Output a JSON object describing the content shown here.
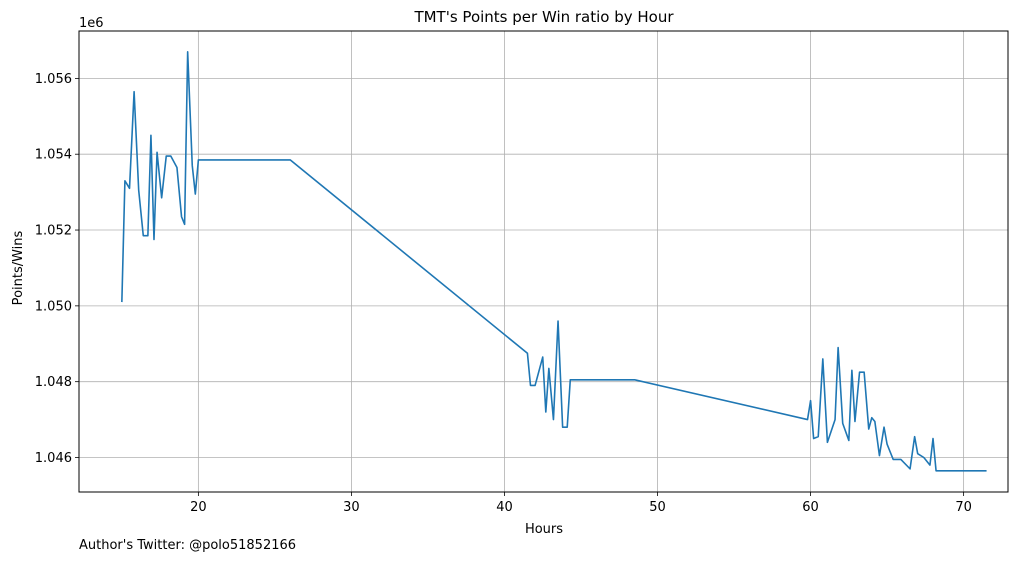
{
  "chart_data": {
    "type": "line",
    "title": "TMT's Points per Win ratio by Hour",
    "xlabel": "Hours",
    "ylabel": "Points/Wins",
    "y_offset_label": "1e6",
    "y_scale": 1000000,
    "xlim": [
      12.2,
      72.9
    ],
    "ylim": [
      1045090,
      1057250
    ],
    "x_ticks": [
      20,
      30,
      40,
      50,
      60,
      70
    ],
    "y_ticks": [
      1046000,
      1048000,
      1050000,
      1052000,
      1054000,
      1056000
    ],
    "y_tick_labels": [
      "1.046",
      "1.048",
      "1.050",
      "1.052",
      "1.054",
      "1.056"
    ],
    "grid": true,
    "line_color": "#1f77b4",
    "series": [
      {
        "x": [
          15.0,
          15.2,
          15.5,
          15.8,
          16.1,
          16.4,
          16.7,
          16.9,
          17.1,
          17.3,
          17.6,
          17.9,
          18.2,
          18.6,
          18.9,
          19.1,
          19.3,
          19.6,
          19.8,
          20.0,
          26.0,
          41.5,
          41.7,
          42.0,
          42.5,
          42.7,
          42.9,
          43.2,
          43.5,
          43.8,
          44.1,
          44.3,
          48.5,
          59.8,
          60.0,
          60.2,
          60.5,
          60.8,
          61.1,
          61.6,
          61.8,
          62.1,
          62.5,
          62.7,
          62.9,
          63.2,
          63.5,
          63.8,
          64.0,
          64.2,
          64.5,
          64.8,
          65.0,
          65.4,
          65.9,
          66.5,
          66.8,
          67.0,
          67.4,
          67.8,
          68.0,
          68.2,
          71.5
        ],
        "y": [
          1050100,
          1053300,
          1053100,
          1055650,
          1053050,
          1051850,
          1051850,
          1054500,
          1051750,
          1054050,
          1052850,
          1053950,
          1053950,
          1053650,
          1052350,
          1052150,
          1056700,
          1053700,
          1052950,
          1053850,
          1053850,
          1048750,
          1047900,
          1047900,
          1048650,
          1047200,
          1048350,
          1047000,
          1049600,
          1046800,
          1046800,
          1048050,
          1048050,
          1047000,
          1047500,
          1046500,
          1046550,
          1048600,
          1046400,
          1047000,
          1048900,
          1046900,
          1046450,
          1048300,
          1046950,
          1048250,
          1048250,
          1046750,
          1047050,
          1046950,
          1046050,
          1046800,
          1046350,
          1045950,
          1045950,
          1045700,
          1046550,
          1046100,
          1046000,
          1045800,
          1046500,
          1045650,
          1045650
        ]
      }
    ]
  },
  "footer": {
    "text": "Author's Twitter: @polo51852166"
  }
}
